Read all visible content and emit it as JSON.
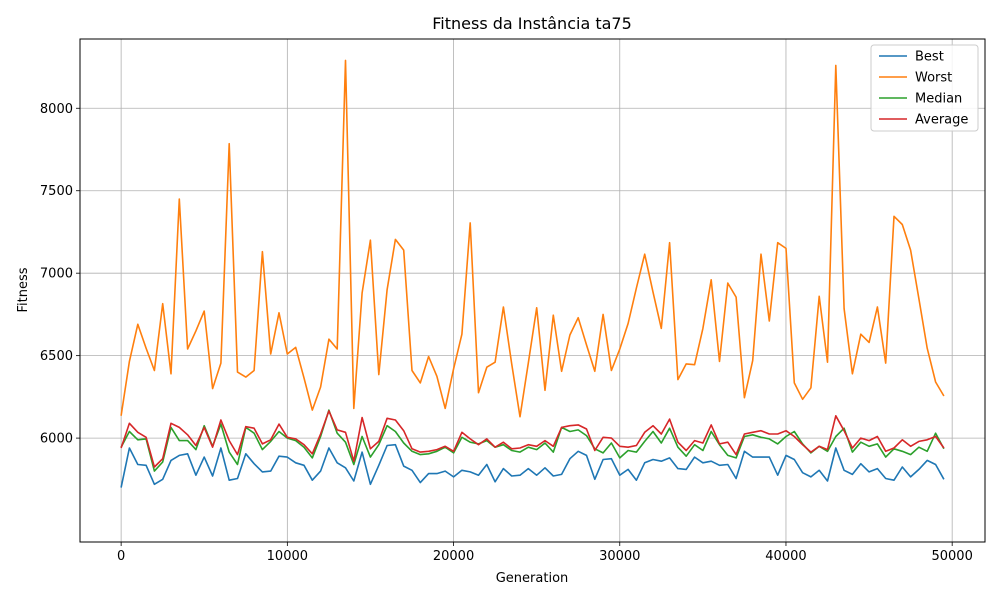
{
  "chart_data": {
    "type": "line",
    "title": "Fitness da Instância ta75",
    "xlabel": "Generation",
    "ylabel": "Fitness",
    "xlim": [
      -2475,
      51975
    ],
    "ylim": [
      5370,
      8420
    ],
    "xticks": [
      0,
      10000,
      20000,
      30000,
      40000,
      50000
    ],
    "yticks": [
      6000,
      6500,
      7000,
      7500,
      8000
    ],
    "grid": true,
    "legend_position": "upper-right",
    "x": [
      0,
      500,
      1000,
      1500,
      2000,
      2500,
      3000,
      3500,
      4000,
      4500,
      5000,
      5500,
      6000,
      6500,
      7000,
      7500,
      8000,
      8500,
      9000,
      9500,
      10000,
      10500,
      11000,
      11500,
      12000,
      12500,
      13000,
      13500,
      14000,
      14500,
      15000,
      15500,
      16000,
      16500,
      17000,
      17500,
      18000,
      18500,
      19000,
      19500,
      20000,
      20500,
      21000,
      21500,
      22000,
      22500,
      23000,
      23500,
      24000,
      24500,
      25000,
      25500,
      26000,
      26500,
      27000,
      27500,
      28000,
      28500,
      29000,
      29500,
      30000,
      30500,
      31000,
      31500,
      32000,
      32500,
      33000,
      33500,
      34000,
      34500,
      35000,
      35500,
      36000,
      36500,
      37000,
      37500,
      38000,
      38500,
      39000,
      39500,
      40000,
      40500,
      41000,
      41500,
      42000,
      42500,
      43000,
      43500,
      44000,
      44500,
      45000,
      45500,
      46000,
      46500,
      47000,
      47500,
      48000,
      48500,
      49000,
      49500
    ],
    "series": [
      {
        "name": "Best",
        "color": "#1f77b4",
        "values": [
          5700,
          5940,
          5840,
          5835,
          5720,
          5750,
          5865,
          5895,
          5905,
          5775,
          5885,
          5770,
          5940,
          5745,
          5755,
          5905,
          5845,
          5795,
          5800,
          5890,
          5885,
          5850,
          5835,
          5745,
          5800,
          5940,
          5850,
          5820,
          5740,
          5915,
          5720,
          5835,
          5955,
          5960,
          5830,
          5805,
          5730,
          5785,
          5785,
          5800,
          5765,
          5805,
          5795,
          5775,
          5840,
          5735,
          5815,
          5770,
          5775,
          5815,
          5775,
          5820,
          5770,
          5780,
          5875,
          5920,
          5895,
          5750,
          5870,
          5875,
          5775,
          5810,
          5745,
          5850,
          5870,
          5860,
          5880,
          5815,
          5810,
          5885,
          5850,
          5860,
          5835,
          5840,
          5755,
          5920,
          5885,
          5885,
          5885,
          5775,
          5895,
          5870,
          5790,
          5765,
          5805,
          5740,
          5940,
          5805,
          5780,
          5845,
          5795,
          5815,
          5755,
          5745,
          5825,
          5765,
          5810,
          5865,
          5840,
          5750
        ]
      },
      {
        "name": "Worst",
        "color": "#ff7f0e",
        "values": [
          6135,
          6465,
          6690,
          6545,
          6410,
          6815,
          6390,
          7450,
          6540,
          6650,
          6770,
          6300,
          6455,
          7785,
          6400,
          6370,
          6410,
          7130,
          6510,
          6760,
          6510,
          6550,
          6365,
          6170,
          6310,
          6600,
          6540,
          8290,
          6180,
          6880,
          7200,
          6385,
          6900,
          7205,
          7140,
          6410,
          6335,
          6495,
          6375,
          6180,
          6420,
          6630,
          7305,
          6275,
          6430,
          6460,
          6795,
          6450,
          6130,
          6455,
          6790,
          6290,
          6745,
          6405,
          6625,
          6730,
          6565,
          6405,
          6750,
          6410,
          6540,
          6695,
          6910,
          7115,
          6885,
          6665,
          7185,
          6355,
          6450,
          6445,
          6665,
          6960,
          6465,
          6940,
          6855,
          6245,
          6470,
          7115,
          6710,
          7185,
          7150,
          6335,
          6235,
          6305,
          6860,
          6460,
          8260,
          6785,
          6390,
          6630,
          6580,
          6795,
          6455,
          7345,
          7295,
          7140,
          6845,
          6545,
          6340,
          6255
        ]
      },
      {
        "name": "Median",
        "color": "#2ca02c",
        "values": [
          5945,
          6040,
          5990,
          5995,
          5800,
          5855,
          6065,
          5985,
          5985,
          5930,
          6075,
          5950,
          6085,
          5915,
          5840,
          6065,
          6030,
          5930,
          5980,
          6040,
          6000,
          5985,
          5945,
          5880,
          6010,
          6170,
          6030,
          5975,
          5840,
          6010,
          5885,
          5960,
          6075,
          6040,
          5970,
          5920,
          5900,
          5905,
          5920,
          5945,
          5910,
          6005,
          5975,
          5965,
          5985,
          5945,
          5960,
          5925,
          5915,
          5945,
          5930,
          5970,
          5915,
          6065,
          6040,
          6050,
          6015,
          5935,
          5910,
          5970,
          5880,
          5925,
          5915,
          5980,
          6040,
          5970,
          6060,
          5945,
          5890,
          5960,
          5925,
          6040,
          5960,
          5895,
          5880,
          6010,
          6020,
          6005,
          5995,
          5965,
          6010,
          6040,
          5965,
          5910,
          5950,
          5920,
          6010,
          6060,
          5915,
          5975,
          5950,
          5965,
          5885,
          5935,
          5920,
          5900,
          5945,
          5920,
          6030,
          5935
        ]
      },
      {
        "name": "Average",
        "color": "#d62728",
        "values": [
          5940,
          6090,
          6035,
          6005,
          5825,
          5875,
          6090,
          6065,
          6020,
          5955,
          6065,
          5945,
          6110,
          5985,
          5900,
          6070,
          6060,
          5965,
          5990,
          6085,
          6005,
          5995,
          5960,
          5905,
          6025,
          6165,
          6050,
          6035,
          5860,
          6125,
          5935,
          5980,
          6120,
          6110,
          6045,
          5935,
          5915,
          5920,
          5930,
          5950,
          5920,
          6035,
          5995,
          5960,
          5995,
          5945,
          5975,
          5935,
          5940,
          5960,
          5950,
          5985,
          5950,
          6065,
          6075,
          6080,
          6055,
          5925,
          6005,
          6000,
          5950,
          5945,
          5955,
          6035,
          6075,
          6025,
          6115,
          5975,
          5925,
          5985,
          5970,
          6080,
          5965,
          5975,
          5900,
          6025,
          6035,
          6045,
          6025,
          6025,
          6045,
          6010,
          5960,
          5915,
          5950,
          5930,
          6135,
          6045,
          5940,
          6000,
          5985,
          6010,
          5920,
          5940,
          5990,
          5950,
          5980,
          5990,
          6010,
          5940
        ]
      }
    ]
  }
}
